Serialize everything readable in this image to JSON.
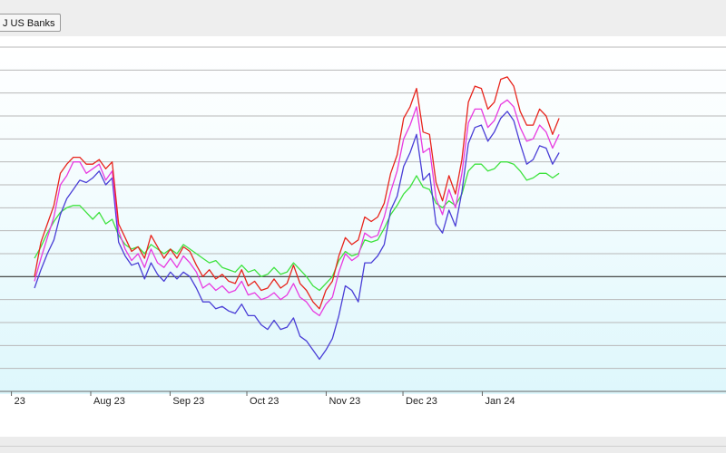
{
  "legend_button": {
    "label": "J US Banks"
  },
  "chart_data": {
    "type": "line",
    "title": "",
    "xlabel": "",
    "ylabel": "",
    "x_ticks": [
      "23",
      "Aug 23",
      "Sep 23",
      "Oct 23",
      "Nov 23",
      "Dec 23",
      "Jan 24"
    ],
    "grid": true,
    "reference_line": 0,
    "ylim": [
      -5,
      10
    ],
    "x_range": [
      "2023-07-10",
      "2024-01-31"
    ],
    "series": [
      {
        "color": "#e8241c",
        "values": [
          0.0,
          1.5,
          2.3,
          3.1,
          4.5,
          4.9,
          5.2,
          5.2,
          4.9,
          4.9,
          5.1,
          4.7,
          5.0,
          2.3,
          1.7,
          1.1,
          1.3,
          0.8,
          1.8,
          1.3,
          0.8,
          1.2,
          0.8,
          1.3,
          1.1,
          0.5,
          0.0,
          0.3,
          -0.1,
          0.1,
          -0.2,
          -0.3,
          0.3,
          -0.4,
          -0.2,
          -0.6,
          -0.5,
          -0.1,
          -0.5,
          -0.3,
          0.5,
          -0.3,
          -0.6,
          -1.1,
          -1.4,
          -0.6,
          -0.2,
          0.9,
          1.7,
          1.4,
          1.6,
          2.6,
          2.4,
          2.6,
          3.2,
          4.5,
          5.3,
          6.9,
          7.4,
          8.2,
          6.3,
          6.2,
          4.1,
          3.3,
          4.4,
          3.6,
          5.1,
          7.6,
          8.3,
          8.2,
          7.3,
          7.6,
          8.6,
          8.7,
          8.3,
          7.2,
          6.6,
          6.6,
          7.3,
          7.0,
          6.2,
          6.9
        ]
      },
      {
        "color": "#e83ae0",
        "values": [
          -0.2,
          0.8,
          1.7,
          2.6,
          4.0,
          4.4,
          5.0,
          5.0,
          4.5,
          4.7,
          4.9,
          4.2,
          4.6,
          2.0,
          1.2,
          0.7,
          1.0,
          0.4,
          1.2,
          0.6,
          0.4,
          0.8,
          0.4,
          0.9,
          0.6,
          0.2,
          -0.5,
          -0.3,
          -0.6,
          -0.4,
          -0.7,
          -0.6,
          -0.2,
          -0.8,
          -0.7,
          -1.0,
          -0.9,
          -0.7,
          -1.0,
          -0.8,
          -0.3,
          -0.9,
          -1.1,
          -1.5,
          -1.7,
          -1.2,
          -0.9,
          0.2,
          1.0,
          0.7,
          0.9,
          1.9,
          1.7,
          1.8,
          2.6,
          3.7,
          4.6,
          6.0,
          6.6,
          7.4,
          5.4,
          5.6,
          3.4,
          2.7,
          3.8,
          3.0,
          4.5,
          6.7,
          7.3,
          7.3,
          6.5,
          6.8,
          7.5,
          7.7,
          7.4,
          6.5,
          5.9,
          6.0,
          6.6,
          6.3,
          5.6,
          6.2
        ]
      },
      {
        "color": "#4a3ed6",
        "values": [
          -0.5,
          0.3,
          1.0,
          1.6,
          2.7,
          3.4,
          3.8,
          4.2,
          4.1,
          4.3,
          4.6,
          4.0,
          4.3,
          1.5,
          0.9,
          0.5,
          0.6,
          -0.1,
          0.6,
          0.1,
          -0.2,
          0.2,
          -0.1,
          0.2,
          0.0,
          -0.5,
          -1.1,
          -1.1,
          -1.4,
          -1.3,
          -1.5,
          -1.6,
          -1.2,
          -1.7,
          -1.7,
          -2.1,
          -2.3,
          -1.9,
          -2.3,
          -2.2,
          -1.8,
          -2.6,
          -2.8,
          -3.2,
          -3.6,
          -3.2,
          -2.7,
          -1.7,
          -0.4,
          -0.6,
          -1.1,
          0.6,
          0.6,
          0.9,
          1.4,
          2.9,
          3.5,
          4.8,
          5.4,
          6.2,
          4.2,
          4.5,
          2.3,
          1.9,
          2.9,
          2.2,
          3.7,
          5.8,
          6.5,
          6.6,
          5.9,
          6.3,
          6.9,
          7.2,
          6.8,
          5.8,
          4.9,
          5.1,
          5.7,
          5.6,
          4.9,
          5.4
        ]
      },
      {
        "color": "#3ee23e",
        "values": [
          0.8,
          1.3,
          1.9,
          2.4,
          2.8,
          3.0,
          3.1,
          3.1,
          2.8,
          2.5,
          2.8,
          2.3,
          2.5,
          1.8,
          1.4,
          1.2,
          1.3,
          1.0,
          1.4,
          1.2,
          1.0,
          1.2,
          1.0,
          1.4,
          1.2,
          1.0,
          0.8,
          0.6,
          0.7,
          0.4,
          0.3,
          0.2,
          0.5,
          0.2,
          0.3,
          0.0,
          0.1,
          0.4,
          0.1,
          0.2,
          0.6,
          0.3,
          0.0,
          -0.4,
          -0.6,
          -0.3,
          0.0,
          0.7,
          1.1,
          0.9,
          1.0,
          1.6,
          1.5,
          1.6,
          2.1,
          2.7,
          3.1,
          3.6,
          3.9,
          4.4,
          3.9,
          3.8,
          3.2,
          3.0,
          3.3,
          3.1,
          3.6,
          4.6,
          4.9,
          4.9,
          4.6,
          4.7,
          5.0,
          5.0,
          4.9,
          4.6,
          4.2,
          4.3,
          4.5,
          4.5,
          4.3,
          4.5
        ]
      }
    ]
  }
}
